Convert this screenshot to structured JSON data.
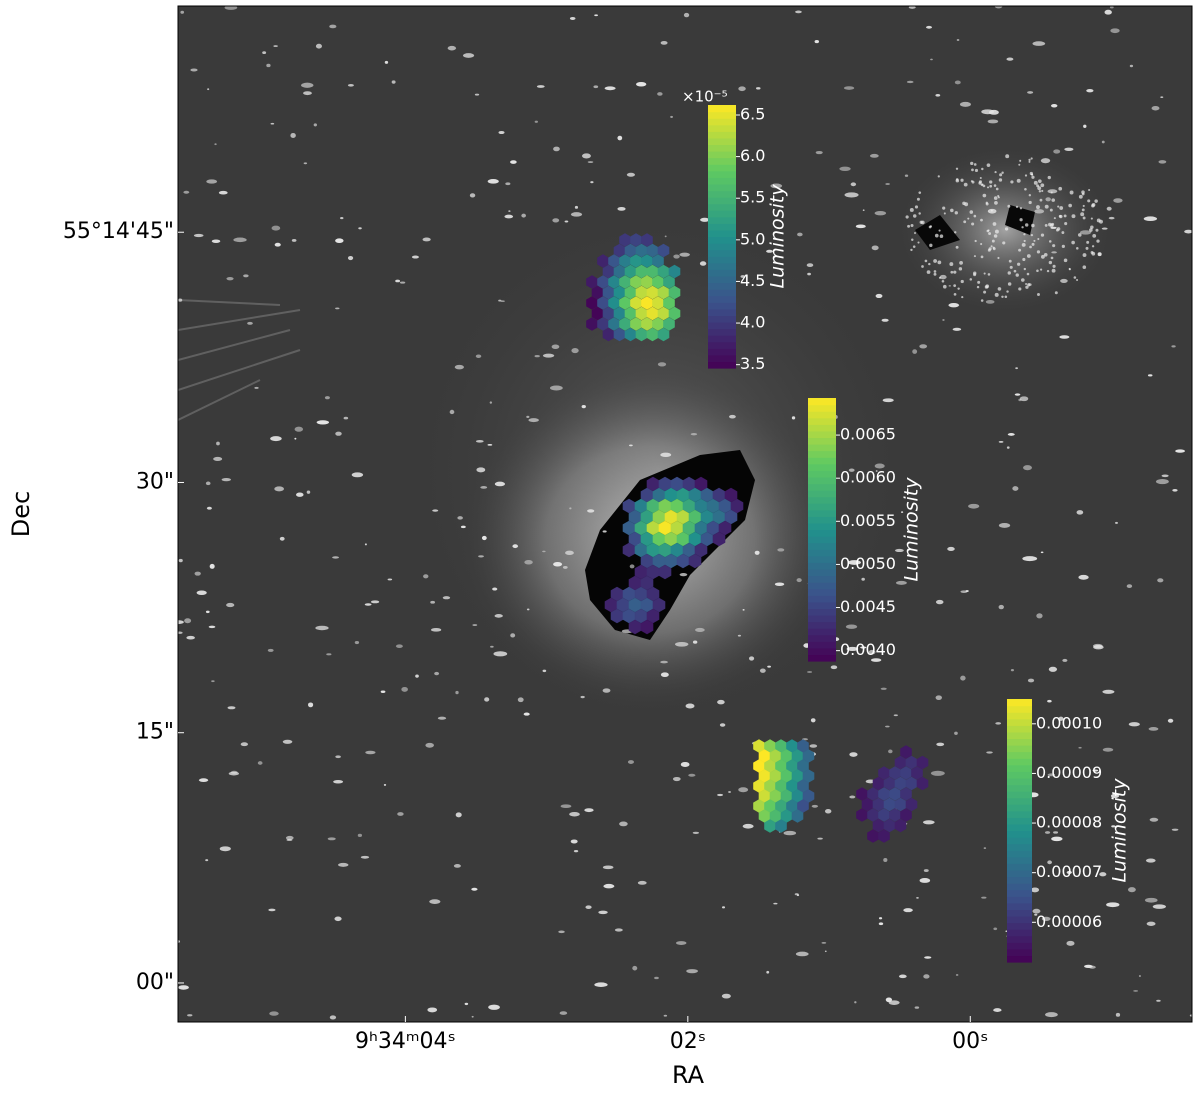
{
  "chart_data": {
    "type": "image",
    "xlabel": "RA",
    "ylabel": "Dec",
    "xlim": [
      5.61,
      -1.57
    ],
    "ylim": [
      -2.34,
      58.56
    ],
    "xticks": [
      {
        "value": 4,
        "label": "9ʰ34ᵐ04ˢ"
      },
      {
        "value": 2,
        "label": "02ˢ"
      },
      {
        "value": 0,
        "label": "00ˢ"
      }
    ],
    "yticks": [
      {
        "value": 45,
        "label": "55°14'45\""
      },
      {
        "value": 30,
        "label": "30\""
      },
      {
        "value": 15,
        "label": "15\""
      },
      {
        "value": 0,
        "label": "00\""
      }
    ],
    "layers": [
      {
        "colormap": "viridis",
        "label": "Luminosity",
        "offset_text": "×10⁻⁵",
        "clim": [
          3.46,
          6.62
        ],
        "ticks": [
          3.5,
          {
            "value": 4,
            "label": "4.0"
          },
          4.5,
          {
            "value": 5,
            "label": "5.0"
          },
          5.5,
          {
            "value": 6,
            "label": "6.0"
          },
          6.5
        ],
        "grids": [
          [
            [
              null,
              null,
              null,
              4.0,
              4.1,
              4.0,
              null,
              null
            ],
            [
              null,
              null,
              4.0,
              4.4,
              4.6,
              4.5,
              4.2,
              null
            ],
            [
              null,
              3.8,
              4.3,
              4.8,
              5.1,
              5.0,
              4.7,
              null
            ],
            [
              null,
              4.0,
              4.6,
              5.2,
              5.6,
              5.6,
              5.3,
              4.9
            ],
            [
              3.7,
              4.2,
              4.9,
              5.5,
              6.0,
              6.1,
              5.8,
              5.3
            ],
            [
              3.6,
              4.3,
              5.0,
              5.7,
              6.3,
              6.4,
              6.2,
              5.6
            ],
            [
              3.5,
              4.2,
              5.0,
              5.8,
              6.4,
              6.6,
              6.4,
              5.8
            ],
            [
              3.5,
              4.1,
              4.9,
              5.7,
              6.3,
              6.5,
              6.3,
              5.7
            ],
            [
              3.6,
              4.0,
              4.7,
              5.4,
              6.0,
              6.2,
              6.0,
              5.5
            ],
            [
              null,
              3.8,
              4.3,
              4.9,
              5.4,
              5.6,
              5.3,
              null
            ]
          ]
        ]
      },
      {
        "colormap": "viridis",
        "label": "Luminosity",
        "clim": [
          0.00388,
          0.00693
        ],
        "ticks": [
          {
            "value": 0.004,
            "label": "0.0040"
          },
          0.0045,
          {
            "value": 0.005,
            "label": "0.0050"
          },
          0.0055,
          {
            "value": 0.006,
            "label": "0.0060"
          },
          0.0065
        ],
        "grids": [
          [
            [
              null,
              null,
              null,
              null,
              0.0042,
              0.0045,
              0.0046,
              0.0044,
              0.0041,
              null,
              null,
              null
            ],
            [
              null,
              null,
              null,
              0.0045,
              0.005,
              0.0054,
              0.0055,
              0.0052,
              0.0048,
              0.0044,
              0.0041,
              null
            ],
            [
              null,
              null,
              0.0045,
              0.0052,
              0.0059,
              0.0063,
              0.0062,
              0.0057,
              0.0052,
              0.005,
              0.0047,
              0.0042
            ],
            [
              null,
              null,
              0.0048,
              0.0056,
              0.0064,
              0.0068,
              0.0066,
              0.006,
              0.0053,
              0.005,
              0.0046,
              null
            ],
            [
              null,
              null,
              0.0048,
              0.0057,
              0.0066,
              0.0069,
              0.0066,
              0.0059,
              0.0051,
              0.0046,
              0.0042,
              null
            ],
            [
              null,
              null,
              0.0046,
              0.0055,
              0.0062,
              0.0064,
              0.0061,
              0.0054,
              0.0047,
              0.0042,
              null,
              null
            ],
            [
              null,
              null,
              0.0043,
              0.005,
              0.0055,
              0.0056,
              0.0053,
              0.0048,
              0.0043,
              null,
              null,
              null
            ],
            [
              null,
              null,
              null,
              0.0045,
              0.0048,
              0.0048,
              0.0046,
              0.0043,
              null,
              null,
              null,
              null
            ],
            [
              null,
              null,
              null,
              0.0042,
              0.0043,
              0.0043,
              null,
              null,
              null,
              null,
              null,
              null
            ],
            [
              null,
              null,
              0.0042,
              0.0043,
              null,
              null,
              null,
              null,
              null,
              null,
              null,
              null
            ],
            [
              null,
              0.0043,
              0.0046,
              0.0045,
              0.0043,
              null,
              null,
              null,
              null,
              null,
              null,
              null
            ],
            [
              0.0042,
              0.0045,
              0.0048,
              0.0047,
              0.0043,
              null,
              null,
              null,
              null,
              null,
              null,
              null
            ],
            [
              null,
              0.0044,
              0.0046,
              0.0045,
              0.0042,
              null,
              null,
              null,
              null,
              null,
              null,
              null
            ],
            [
              null,
              null,
              0.0042,
              0.0041,
              null,
              null,
              null,
              null,
              null,
              null,
              null,
              null
            ]
          ]
        ]
      },
      {
        "colormap": "viridis",
        "label": "Luminosity",
        "clim": [
          5.2e-05,
          0.000105
        ],
        "ticks": [
          {
            "value": 6e-05,
            "label": "0.00006"
          },
          {
            "value": 7e-05,
            "label": "0.00007"
          },
          {
            "value": 8e-05,
            "label": "0.00008"
          },
          {
            "value": 9e-05,
            "label": "0.00009"
          },
          {
            "value": 0.0001,
            "label": "0.00010"
          }
        ],
        "grids": [
          [
            [
              0.000102,
              9.5e-05,
              8.8e-05,
              7.8e-05,
              6.8e-05
            ],
            [
              0.000105,
              9.8e-05,
              9e-05,
              8e-05,
              7e-05
            ],
            [
              0.000105,
              9.9e-05,
              9.1e-05,
              8.1e-05,
              7.1e-05
            ],
            [
              0.000104,
              9.8e-05,
              9e-05,
              8e-05,
              7e-05
            ],
            [
              0.000103,
              9.7e-05,
              8.9e-05,
              7.9e-05,
              6.9e-05
            ],
            [
              0.000101,
              9.5e-05,
              8.7e-05,
              7.7e-05,
              6.7e-05
            ],
            [
              9.8e-05,
              9.2e-05,
              8.4e-05,
              7.4e-05,
              6.5e-05
            ],
            [
              9.4e-05,
              8.8e-05,
              8e-05,
              7.1e-05,
              null
            ],
            [
              null,
              8.2e-05,
              7.5e-05,
              null,
              null
            ]
          ],
          [
            [
              null,
              null,
              null,
              null,
              5.6e-05,
              null
            ],
            [
              null,
              null,
              null,
              5.8e-05,
              6e-05,
              5.7e-05
            ],
            [
              null,
              null,
              5.8e-05,
              6.1e-05,
              6.2e-05,
              5.8e-05
            ],
            [
              null,
              5.7e-05,
              6e-05,
              6.3e-05,
              6.2e-05,
              5.7e-05
            ],
            [
              5.5e-05,
              5.9e-05,
              6.3e-05,
              6.4e-05,
              6e-05,
              null
            ],
            [
              5.6e-05,
              6e-05,
              6.4e-05,
              6.3e-05,
              5.8e-05,
              null
            ],
            [
              5.5e-05,
              5.9e-05,
              6.2e-05,
              6e-05,
              5.6e-05,
              null
            ],
            [
              null,
              5.7e-05,
              5.9e-05,
              5.7e-05,
              null,
              null
            ],
            [
              null,
              5.5e-05,
              5.6e-05,
              null,
              null,
              null
            ]
          ]
        ]
      }
    ]
  }
}
